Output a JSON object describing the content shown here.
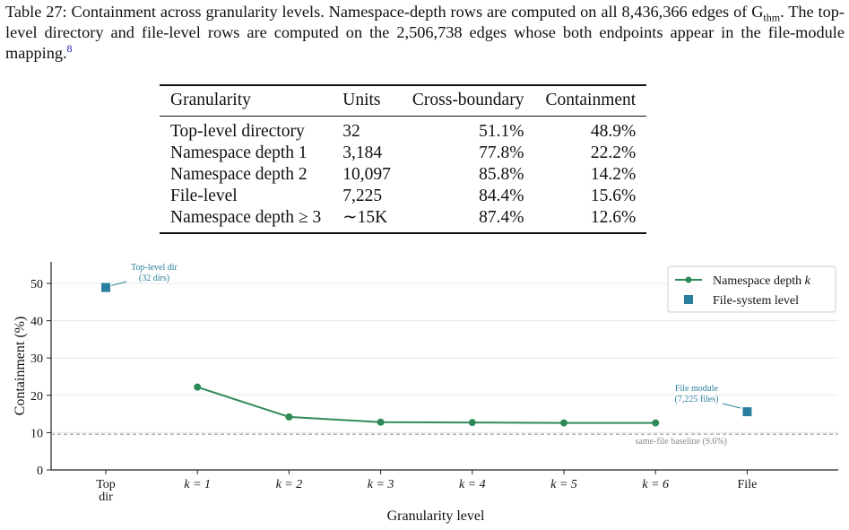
{
  "caption": {
    "label": "Table 27:",
    "part1": "Containment across granularity levels. Namespace-depth rows are computed on all 8,436,366 edges of G",
    "subscript": "thm",
    "part2": ". The top-level directory and file-level rows are computed on the 2,506,738 edges whose both endpoints appear in the file-module mapping.",
    "footnote": "8"
  },
  "table": {
    "headers": [
      "Granularity",
      "Units",
      "Cross-boundary",
      "Containment"
    ],
    "rows": [
      [
        "Top-level directory",
        "32",
        "51.1%",
        "48.9%"
      ],
      [
        "Namespace depth 1",
        "3,184",
        "77.8%",
        "22.2%"
      ],
      [
        "Namespace depth 2",
        "10,097",
        "85.8%",
        "14.2%"
      ],
      [
        "File-level",
        "7,225",
        "84.4%",
        "15.6%"
      ],
      [
        "Namespace depth ≥ 3",
        "∼15K",
        "87.4%",
        "12.6%"
      ]
    ]
  },
  "chart_data": {
    "type": "line",
    "xlabel": "Granularity level",
    "ylabel": "Containment (%)",
    "ylim": [
      0,
      56
    ],
    "yticks": [
      0,
      10,
      20,
      30,
      40,
      50
    ],
    "grid": "horizontal",
    "categories": [
      "Top\ndir",
      "k = 1",
      "k = 2",
      "k = 3",
      "k = 4",
      "k = 5",
      "k = 6",
      "File"
    ],
    "series": [
      {
        "name": "Namespace depth k",
        "marker": "circle",
        "color": "#2e8b57",
        "x": [
          "k = 1",
          "k = 2",
          "k = 3",
          "k = 4",
          "k = 5",
          "k = 6"
        ],
        "values": [
          22.2,
          14.2,
          12.8,
          12.7,
          12.6,
          12.6
        ]
      },
      {
        "name": "File-system level",
        "marker": "square",
        "color": "#2a7f9e",
        "x": [
          "Top\ndir",
          "File"
        ],
        "values": [
          48.9,
          15.6
        ]
      }
    ],
    "baseline": {
      "value": 9.6,
      "label": "same-file baseline (9.6%)",
      "color": "#888888",
      "style": "dashed"
    },
    "annotations": [
      {
        "text": [
          "Top-level dir",
          "(32 dirs)"
        ],
        "target": "Top\ndir",
        "color": "#2a7f9e"
      },
      {
        "text": [
          "File module",
          "(7,225 files)"
        ],
        "target": "File",
        "color": "#2a7f9e"
      }
    ],
    "legend": {
      "position": "top-right",
      "entries": [
        "Namespace depth k",
        "File-system level"
      ]
    }
  }
}
